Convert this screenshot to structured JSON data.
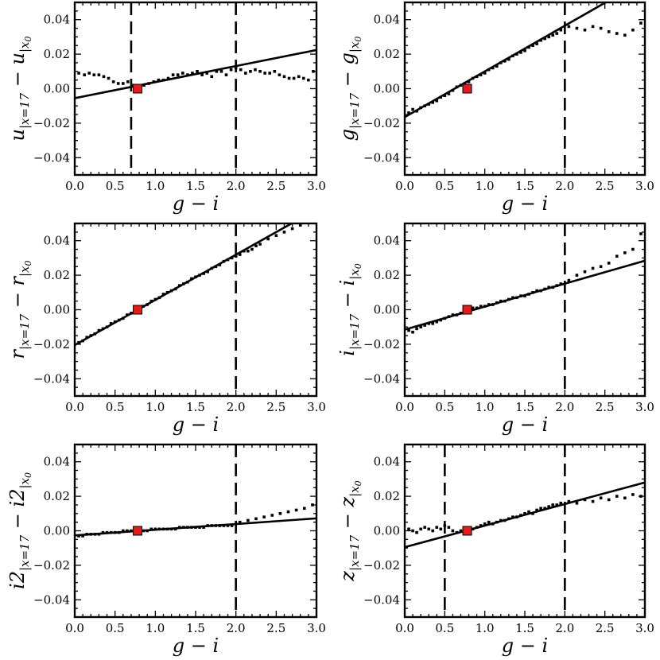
{
  "chart_data": [
    {
      "type": "scatter",
      "panel": "u",
      "ylabel_var": "u",
      "xlabel": "g − i",
      "xlim": [
        0.0,
        3.0
      ],
      "ylim": [
        -0.05,
        0.05
      ],
      "xticks": [
        "0.0",
        "0.5",
        "1.0",
        "1.5",
        "2.0",
        "2.5",
        "3.0"
      ],
      "yticks": [
        "−0.04",
        "−0.02",
        "0.00",
        "0.02",
        "0.04"
      ],
      "fit": {
        "slope": 0.0093,
        "intercept": -0.0055
      },
      "vlines": [
        0.7,
        2.0
      ],
      "reference_point": {
        "x": 0.78,
        "y": 0.0
      },
      "scatter_trend": "flat",
      "x": [
        0.05,
        0.12,
        0.18,
        0.24,
        0.3,
        0.36,
        0.42,
        0.48,
        0.54,
        0.6,
        0.66,
        0.72,
        0.8,
        0.86,
        0.92,
        0.98,
        1.04,
        1.1,
        1.16,
        1.22,
        1.28,
        1.34,
        1.4,
        1.46,
        1.52,
        1.58,
        1.64,
        1.7,
        1.76,
        1.82,
        1.88,
        1.94,
        2.0,
        2.06,
        2.12,
        2.18,
        2.24,
        2.3,
        2.36,
        2.42,
        2.48,
        2.54,
        2.6,
        2.66,
        2.72,
        2.78,
        2.84,
        2.9,
        2.96
      ],
      "y": [
        0.009,
        0.008,
        0.009,
        0.008,
        0.008,
        0.007,
        0.006,
        0.004,
        0.003,
        0.003,
        0.004,
        0.002,
        0.001,
        0.002,
        0.003,
        0.004,
        0.005,
        0.005,
        0.006,
        0.008,
        0.008,
        0.009,
        0.008,
        0.009,
        0.01,
        0.008,
        0.009,
        0.007,
        0.01,
        0.01,
        0.008,
        0.011,
        0.012,
        0.011,
        0.009,
        0.01,
        0.011,
        0.01,
        0.009,
        0.009,
        0.01,
        0.008,
        0.007,
        0.006,
        0.006,
        0.007,
        0.006,
        0.005,
        0.01
      ]
    },
    {
      "type": "scatter",
      "panel": "g",
      "ylabel_var": "g",
      "xlabel": "g − i",
      "xlim": [
        0.0,
        3.0
      ],
      "ylim": [
        -0.05,
        0.05
      ],
      "xticks": [
        "0.0",
        "0.5",
        "1.0",
        "1.5",
        "2.0",
        "2.5",
        "3.0"
      ],
      "yticks": [
        "−0.04",
        "−0.02",
        "0.00",
        "0.02",
        "0.04"
      ],
      "fit": {
        "slope": 0.0265,
        "intercept": -0.0165
      },
      "vlines": [
        2.0
      ],
      "reference_point": {
        "x": 0.78,
        "y": 0.0
      },
      "scatter_trend": "fit",
      "x": [
        0.05,
        0.1,
        0.15,
        0.2,
        0.25,
        0.3,
        0.35,
        0.4,
        0.45,
        0.5,
        0.55,
        0.6,
        0.65,
        0.7,
        0.75,
        0.8,
        0.85,
        0.9,
        0.95,
        1.0,
        1.05,
        1.1,
        1.15,
        1.2,
        1.25,
        1.3,
        1.35,
        1.4,
        1.45,
        1.5,
        1.55,
        1.6,
        1.65,
        1.7,
        1.75,
        1.8,
        1.85,
        1.9,
        1.95,
        2.05,
        2.15,
        2.25,
        2.35,
        2.45,
        2.55,
        2.65,
        2.75,
        2.85,
        2.95
      ],
      "y": [
        -0.014,
        -0.012,
        -0.013,
        -0.011,
        -0.01,
        -0.009,
        -0.008,
        -0.007,
        -0.005,
        -0.004,
        -0.003,
        -0.001,
        0.001,
        0.002,
        0.003,
        0.004,
        0.006,
        0.007,
        0.008,
        0.009,
        0.011,
        0.012,
        0.013,
        0.015,
        0.016,
        0.017,
        0.019,
        0.02,
        0.021,
        0.022,
        0.024,
        0.025,
        0.026,
        0.028,
        0.029,
        0.03,
        0.031,
        0.032,
        0.034,
        0.036,
        0.035,
        0.034,
        0.036,
        0.035,
        0.033,
        0.032,
        0.031,
        0.034,
        0.038
      ]
    },
    {
      "type": "scatter",
      "panel": "r",
      "ylabel_var": "r",
      "xlabel": "g − i",
      "xlim": [
        0.0,
        3.0
      ],
      "ylim": [
        -0.05,
        0.05
      ],
      "xticks": [
        "0.0",
        "0.5",
        "1.0",
        "1.5",
        "2.0",
        "2.5",
        "3.0"
      ],
      "yticks": [
        "−0.04",
        "−0.02",
        "0.00",
        "0.02",
        "0.04"
      ],
      "fit": {
        "slope": 0.0262,
        "intercept": -0.0205
      },
      "vlines": [
        2.0
      ],
      "reference_point": {
        "x": 0.78,
        "y": 0.0
      },
      "scatter_trend": "fit",
      "x": [
        0.05,
        0.1,
        0.15,
        0.2,
        0.25,
        0.3,
        0.35,
        0.4,
        0.45,
        0.5,
        0.55,
        0.6,
        0.65,
        0.7,
        0.75,
        0.8,
        0.85,
        0.9,
        0.95,
        1.0,
        1.05,
        1.1,
        1.15,
        1.2,
        1.25,
        1.3,
        1.35,
        1.4,
        1.45,
        1.5,
        1.55,
        1.6,
        1.65,
        1.7,
        1.75,
        1.8,
        1.85,
        1.9,
        1.95,
        2.0,
        2.05,
        2.1,
        2.15,
        2.2,
        2.25,
        2.3,
        2.4,
        2.5,
        2.6,
        2.7,
        2.8
      ],
      "y": [
        -0.019,
        -0.018,
        -0.016,
        -0.015,
        -0.014,
        -0.012,
        -0.011,
        -0.01,
        -0.008,
        -0.007,
        -0.006,
        -0.005,
        -0.003,
        -0.002,
        -0.001,
        0.001,
        0.002,
        0.003,
        0.005,
        0.006,
        0.007,
        0.009,
        0.01,
        0.011,
        0.012,
        0.014,
        0.015,
        0.016,
        0.018,
        0.019,
        0.02,
        0.021,
        0.022,
        0.024,
        0.025,
        0.026,
        0.028,
        0.029,
        0.03,
        0.031,
        0.032,
        0.034,
        0.034,
        0.035,
        0.037,
        0.038,
        0.041,
        0.043,
        0.045,
        0.047,
        0.049
      ]
    },
    {
      "type": "scatter",
      "panel": "i",
      "ylabel_var": "i",
      "xlabel": "g − i",
      "xlim": [
        0.0,
        3.0
      ],
      "ylim": [
        -0.05,
        0.05
      ],
      "xticks": [
        "0.0",
        "0.5",
        "1.0",
        "1.5",
        "2.0",
        "2.5",
        "3.0"
      ],
      "yticks": [
        "−0.04",
        "−0.02",
        "0.00",
        "0.02",
        "0.04"
      ],
      "fit": {
        "slope": 0.0133,
        "intercept": -0.0115
      },
      "vlines": [
        2.0
      ],
      "reference_point": {
        "x": 0.78,
        "y": 0.0
      },
      "scatter_trend": "fit",
      "x": [
        0.05,
        0.1,
        0.15,
        0.2,
        0.25,
        0.3,
        0.35,
        0.4,
        0.45,
        0.5,
        0.55,
        0.6,
        0.65,
        0.7,
        0.75,
        0.8,
        0.85,
        0.9,
        0.95,
        1.0,
        1.05,
        1.1,
        1.15,
        1.2,
        1.25,
        1.3,
        1.35,
        1.4,
        1.45,
        1.5,
        1.55,
        1.6,
        1.65,
        1.7,
        1.75,
        1.8,
        1.85,
        1.9,
        1.95,
        2.05,
        2.15,
        2.25,
        2.35,
        2.45,
        2.55,
        2.65,
        2.75,
        2.85,
        2.95
      ],
      "y": [
        -0.012,
        -0.013,
        -0.011,
        -0.01,
        -0.009,
        -0.008,
        -0.008,
        -0.007,
        -0.006,
        -0.005,
        -0.004,
        -0.003,
        -0.003,
        -0.002,
        -0.001,
        0.0,
        0.001,
        0.001,
        0.002,
        0.002,
        0.003,
        0.003,
        0.004,
        0.005,
        0.005,
        0.006,
        0.007,
        0.007,
        0.008,
        0.008,
        0.009,
        0.01,
        0.011,
        0.011,
        0.012,
        0.013,
        0.013,
        0.014,
        0.015,
        0.017,
        0.02,
        0.022,
        0.024,
        0.025,
        0.027,
        0.031,
        0.033,
        0.035,
        0.044
      ]
    },
    {
      "type": "scatter",
      "panel": "i2",
      "ylabel_var": "i2",
      "xlabel": "g − i",
      "xlim": [
        0.0,
        3.0
      ],
      "ylim": [
        -0.05,
        0.05
      ],
      "xticks": [
        "0.0",
        "0.5",
        "1.0",
        "1.5",
        "2.0",
        "2.5",
        "3.0"
      ],
      "yticks": [
        "−0.04",
        "−0.02",
        "0.00",
        "0.02",
        "0.04"
      ],
      "fit": {
        "slope": 0.0033,
        "intercept": -0.0027
      },
      "vlines": [
        2.0
      ],
      "reference_point": {
        "x": 0.78,
        "y": 0.0
      },
      "scatter_trend": "fit",
      "x": [
        0.05,
        0.1,
        0.15,
        0.2,
        0.25,
        0.3,
        0.35,
        0.4,
        0.45,
        0.5,
        0.55,
        0.6,
        0.65,
        0.7,
        0.75,
        0.8,
        0.85,
        0.9,
        0.95,
        1.0,
        1.05,
        1.1,
        1.15,
        1.2,
        1.25,
        1.3,
        1.35,
        1.4,
        1.45,
        1.5,
        1.55,
        1.6,
        1.65,
        1.7,
        1.75,
        1.8,
        1.85,
        1.9,
        1.95,
        2.05,
        2.15,
        2.25,
        2.35,
        2.45,
        2.55,
        2.65,
        2.75,
        2.85,
        2.95
      ],
      "y": [
        -0.003,
        -0.003,
        -0.002,
        -0.002,
        -0.002,
        -0.002,
        -0.001,
        -0.001,
        -0.001,
        -0.001,
        -0.001,
        0.0,
        0.0,
        0.0,
        0.0,
        0.0,
        0.0,
        0.0,
        0.001,
        0.001,
        0.001,
        0.001,
        0.001,
        0.001,
        0.001,
        0.002,
        0.002,
        0.002,
        0.002,
        0.002,
        0.002,
        0.002,
        0.003,
        0.003,
        0.003,
        0.003,
        0.003,
        0.003,
        0.003,
        0.005,
        0.006,
        0.007,
        0.008,
        0.009,
        0.01,
        0.011,
        0.012,
        0.013,
        0.015
      ]
    },
    {
      "type": "scatter",
      "panel": "z",
      "ylabel_var": "z",
      "xlabel": "g − i",
      "xlim": [
        0.0,
        3.0
      ],
      "ylim": [
        -0.05,
        0.05
      ],
      "xticks": [
        "0.0",
        "0.5",
        "1.0",
        "1.5",
        "2.0",
        "2.5",
        "3.0"
      ],
      "yticks": [
        "−0.04",
        "−0.02",
        "0.00",
        "0.02",
        "0.04"
      ],
      "fit": {
        "slope": 0.0125,
        "intercept": -0.0095
      },
      "vlines": [
        0.5,
        2.0
      ],
      "reference_point": {
        "x": 0.78,
        "y": 0.0
      },
      "scatter_trend": "fit",
      "x": [
        0.05,
        0.1,
        0.15,
        0.2,
        0.25,
        0.3,
        0.35,
        0.4,
        0.45,
        0.5,
        0.55,
        0.6,
        0.65,
        0.7,
        0.75,
        0.8,
        0.85,
        0.9,
        0.95,
        1.0,
        1.05,
        1.1,
        1.15,
        1.2,
        1.25,
        1.3,
        1.35,
        1.4,
        1.45,
        1.5,
        1.55,
        1.6,
        1.65,
        1.7,
        1.75,
        1.8,
        1.85,
        1.9,
        1.95,
        2.05,
        2.15,
        2.25,
        2.35,
        2.45,
        2.55,
        2.65,
        2.75,
        2.85,
        2.95
      ],
      "y": [
        0.001,
        0.0,
        -0.001,
        0.001,
        0.002,
        0.001,
        0.0,
        0.002,
        0.001,
        0.003,
        0.002,
        0.0,
        -0.001,
        0.0,
        0.0,
        0.0,
        0.001,
        0.002,
        0.003,
        0.004,
        0.005,
        0.004,
        0.005,
        0.006,
        0.006,
        0.007,
        0.008,
        0.008,
        0.009,
        0.01,
        0.011,
        0.01,
        0.012,
        0.013,
        0.013,
        0.014,
        0.015,
        0.015,
        0.016,
        0.017,
        0.016,
        0.018,
        0.017,
        0.019,
        0.018,
        0.02,
        0.019,
        0.021,
        0.02
      ]
    }
  ]
}
